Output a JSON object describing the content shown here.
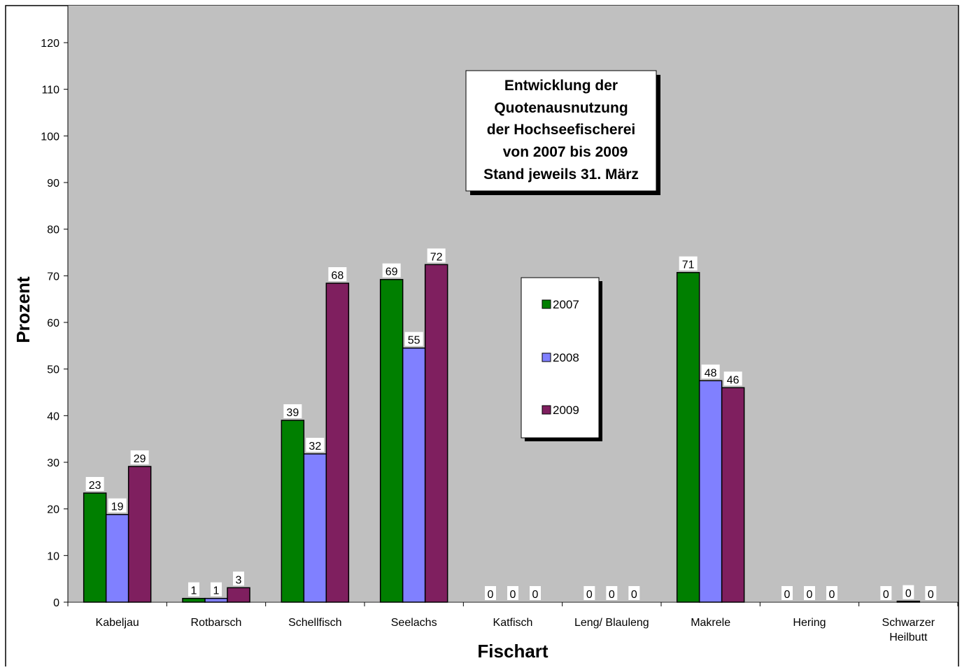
{
  "chart_data": {
    "type": "bar",
    "title_lines": [
      "Entwicklung der",
      "Quotenausnutzung",
      "der Hochseefischerei",
      "von 2007 bis 2009",
      "Stand jeweils 31. März"
    ],
    "xlabel": "Fischart",
    "ylabel": "Prozent",
    "ylim": [
      0,
      120
    ],
    "yticks": [
      0,
      10,
      20,
      30,
      40,
      50,
      60,
      70,
      80,
      90,
      100,
      110,
      120
    ],
    "categories": [
      "Kabeljau",
      "Rotbarsch",
      "Schellfisch",
      "Seelachs",
      "Katfisch",
      "Leng/ Blauleng",
      "Makrele",
      "Hering",
      "Schwarzer Heilbutt"
    ],
    "series": [
      {
        "name": "2007",
        "color": "#007f00",
        "values": [
          23.4,
          0.8,
          39,
          69.2,
          0,
          0,
          70.7,
          0,
          0
        ],
        "labels": [
          "23",
          "1",
          "39",
          "69",
          "0",
          "0",
          "71",
          "0",
          "0"
        ]
      },
      {
        "name": "2008",
        "color": "#8080ff",
        "values": [
          18.8,
          0.8,
          31.8,
          54.5,
          0,
          0,
          47.5,
          0,
          0.2
        ],
        "labels": [
          "19",
          "1",
          "32",
          "55",
          "0",
          "0",
          "48",
          "0",
          "0"
        ]
      },
      {
        "name": "2009",
        "color": "#7f1f5f",
        "values": [
          29.1,
          3.1,
          68.4,
          72.4,
          0,
          0,
          46.0,
          0,
          0
        ],
        "labels": [
          "29",
          "3",
          "68",
          "72",
          "0",
          "0",
          "46",
          "0",
          "0"
        ]
      }
    ],
    "plot_background": "#c0c0c0",
    "grid": false,
    "legend_position": "center"
  }
}
